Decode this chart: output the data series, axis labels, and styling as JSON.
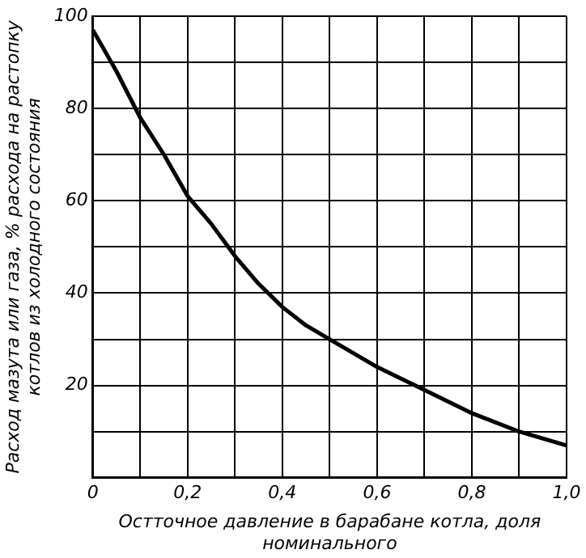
{
  "chart_data": {
    "type": "line",
    "xlabel": "Остточное давление в барабане котла, доля номинального",
    "ylabel": "Расход мазута или газа, % расхода на растопку котлов из холодного состояния",
    "x": [
      0,
      0.05,
      0.1,
      0.15,
      0.2,
      0.25,
      0.3,
      0.35,
      0.4,
      0.45,
      0.5,
      0.6,
      0.7,
      0.8,
      0.9,
      1.0
    ],
    "series": [
      {
        "color": "#000000",
        "values": [
          97,
          88,
          78,
          70,
          61,
          55,
          48,
          42,
          37,
          33,
          30,
          24,
          19,
          14,
          10,
          7
        ]
      }
    ],
    "xlim": [
      0,
      1
    ],
    "xticks": [
      0,
      {
        "value": 0.1,
        "label": null
      },
      {
        "value": 0.2,
        "label": "0,2"
      },
      {
        "value": 0.3,
        "label": null
      },
      {
        "value": 0.4,
        "label": "0,4"
      },
      {
        "value": 0.5,
        "label": null
      },
      {
        "value": 0.6,
        "label": "0,6"
      },
      {
        "value": 0.7,
        "label": null
      },
      {
        "value": 0.8,
        "label": "0,8"
      },
      {
        "value": 0.9,
        "label": null
      },
      {
        "value": 1.0,
        "label": "1,0"
      }
    ],
    "ylim": [
      0,
      100
    ],
    "yticks": [
      {
        "value": 0,
        "label": null
      },
      {
        "value": 10,
        "label": null
      },
      20,
      {
        "value": 30,
        "label": null
      },
      40,
      {
        "value": 50,
        "label": null
      },
      60,
      {
        "value": 70,
        "label": null
      },
      80,
      {
        "value": 90,
        "label": null
      },
      100
    ],
    "grid": true,
    "marker": "none",
    "line_style": "solid"
  }
}
